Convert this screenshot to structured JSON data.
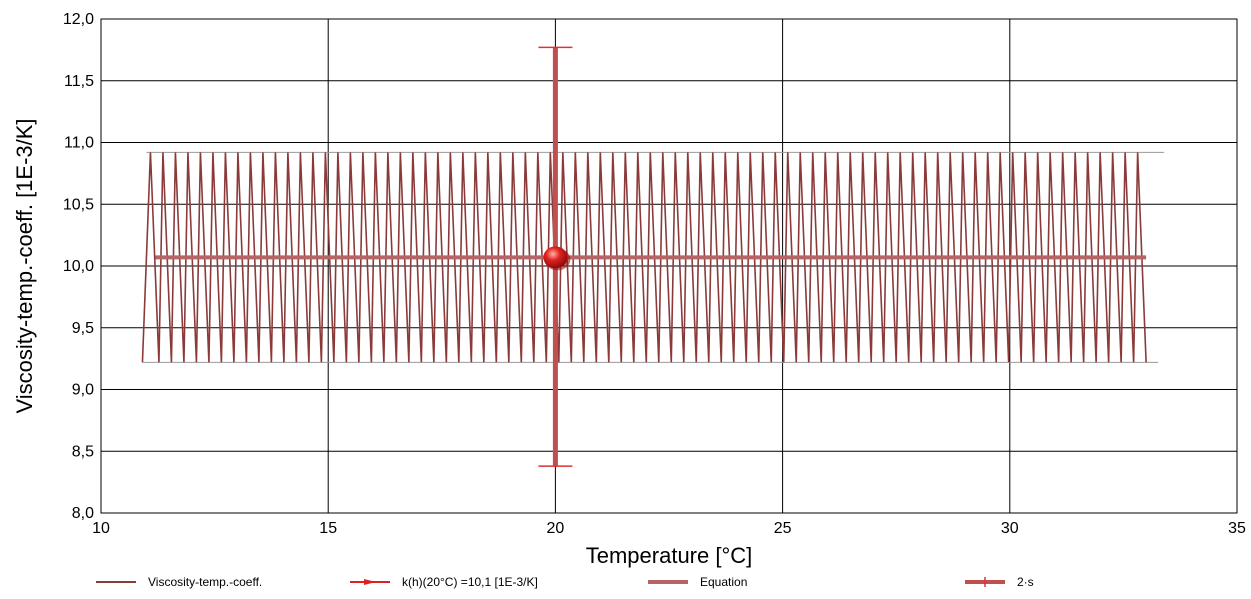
{
  "chart_data": {
    "type": "line",
    "xlabel": "Temperature [°C]",
    "ylabel": "Viscosity-temp.-coeff. [1E-3/K]",
    "xlim": [
      10,
      35
    ],
    "ylim": [
      8.0,
      12.0
    ],
    "x_ticks": [
      "10",
      "15",
      "20",
      "25",
      "30",
      "35"
    ],
    "y_ticks": [
      "8,0",
      "8,5",
      "9,0",
      "9,5",
      "10,0",
      "10,5",
      "11,0",
      "11,5",
      "12,0"
    ],
    "grid": true,
    "legend_position": "bottom",
    "colors": {
      "band": "#8B3A3A",
      "equation": "#B56565",
      "point": "#E02020",
      "errorbar": "#C05050",
      "errorcap": "#E03030"
    },
    "series": [
      {
        "name": "Viscosity-temp.-coeff.",
        "kind": "band",
        "x": [
          11.0,
          33.0
        ],
        "upper": 10.92,
        "lower": 9.22
      },
      {
        "name": "k(h)(20°C) =10,1 [1E-3/K]",
        "kind": "point",
        "x": 20,
        "y": 10.07
      },
      {
        "name": "Equation",
        "kind": "line",
        "x": [
          11.2,
          33.0
        ],
        "y": [
          10.07,
          10.07
        ]
      },
      {
        "name": "2·s",
        "kind": "errorbar",
        "x": 20,
        "y": 10.07,
        "low": 8.38,
        "high": 11.77
      }
    ]
  }
}
